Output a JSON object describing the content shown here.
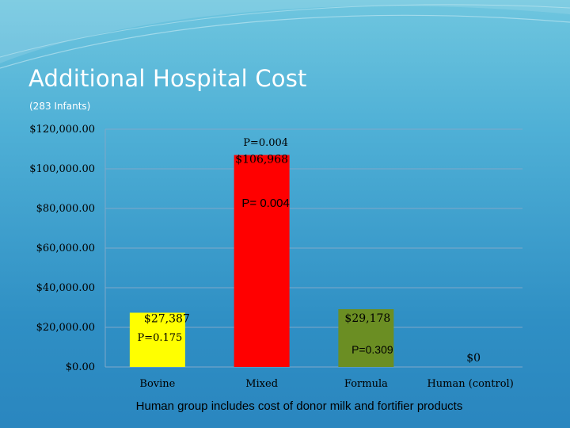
{
  "slide": {
    "title": "Additional Hospital Cost",
    "subtitle": "(283 Infants)",
    "footnote": "Human group includes cost of donor milk and fortifier products"
  },
  "colors": {
    "grid": "#7fa8c9",
    "title_text": "#ffffff"
  },
  "chart_data": {
    "type": "bar",
    "categories": [
      "Bovine",
      "Mixed",
      "Formula",
      "Human (control)"
    ],
    "values": [
      27387,
      106968,
      29178,
      0
    ],
    "data_labels": [
      "$27,387",
      "$106,968",
      "$29,178",
      "$0"
    ],
    "bar_colors": [
      "#ffff00",
      "#ff0000",
      "#6b8e23",
      "#4a90c8"
    ],
    "ylim": [
      0,
      120000
    ],
    "yticks": [
      0,
      20000,
      40000,
      60000,
      80000,
      100000,
      120000
    ],
    "ytick_labels": [
      "$0.00",
      "$20,000.00",
      "$40,000.00",
      "$60,000.00",
      "$80,000.00",
      "$100,000.00",
      "$120,000.00"
    ],
    "grid": true,
    "annotations": [
      {
        "text": "P=0.004",
        "near": "Mixed",
        "style": "serif"
      },
      {
        "text": "P= 0.004",
        "near": "Mixed",
        "style": "sans"
      },
      {
        "text": "P=0.175",
        "near": "Bovine",
        "style": "serif"
      },
      {
        "text": "P=0.309",
        "near": "Formula",
        "style": "sans"
      }
    ]
  }
}
